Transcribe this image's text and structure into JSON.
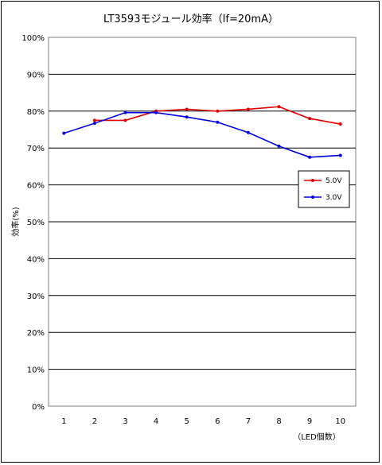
{
  "chart_data": {
    "type": "line",
    "title": "LT3593モジュール効率（If=20mA）",
    "xlabel": "（LED個数）",
    "ylabel": "効率(%)",
    "categories": [
      "1",
      "2",
      "3",
      "4",
      "5",
      "6",
      "7",
      "8",
      "9",
      "10"
    ],
    "ylim": [
      0,
      100
    ],
    "yticks": [
      "0%",
      "10%",
      "20%",
      "30%",
      "40%",
      "50%",
      "60%",
      "70%",
      "80%",
      "90%",
      "100%"
    ],
    "grid": true,
    "legend_position": "right",
    "series": [
      {
        "name": "5.0V",
        "color": "#e00000",
        "values": [
          null,
          77.5,
          77.5,
          80.0,
          80.5,
          80.0,
          80.5,
          81.2,
          78.0,
          76.5
        ]
      },
      {
        "name": "3.0V",
        "color": "#0000e0",
        "values": [
          74.0,
          76.7,
          79.6,
          79.6,
          78.4,
          77.0,
          74.2,
          70.5,
          67.5,
          68.0
        ]
      }
    ]
  }
}
